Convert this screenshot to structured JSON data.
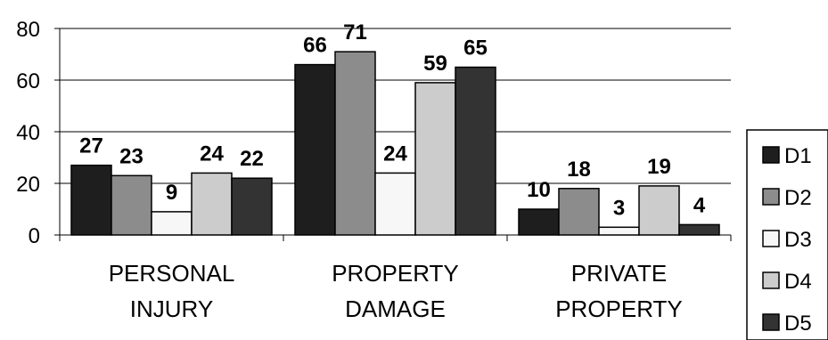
{
  "chart_data": {
    "type": "bar",
    "categories": [
      [
        "PERSONAL",
        "INJURY"
      ],
      [
        "PROPERTY",
        "DAMAGE"
      ],
      [
        "PRIVATE",
        "PROPERTY"
      ]
    ],
    "series": [
      {
        "name": "D1",
        "color": "#1e1e1e",
        "values": [
          27,
          66,
          10
        ]
      },
      {
        "name": "D2",
        "color": "#8c8c8c",
        "values": [
          23,
          71,
          18
        ]
      },
      {
        "name": "D3",
        "color": "#f7f7f7",
        "values": [
          9,
          24,
          3
        ]
      },
      {
        "name": "D4",
        "color": "#cccccc",
        "values": [
          24,
          59,
          19
        ]
      },
      {
        "name": "D5",
        "color": "#333333",
        "values": [
          22,
          65,
          4
        ]
      }
    ],
    "ylim": [
      0,
      80
    ],
    "yticks": [
      0,
      20,
      40,
      60,
      80
    ],
    "grid": true,
    "legend_position": "right",
    "data_labels": true
  }
}
